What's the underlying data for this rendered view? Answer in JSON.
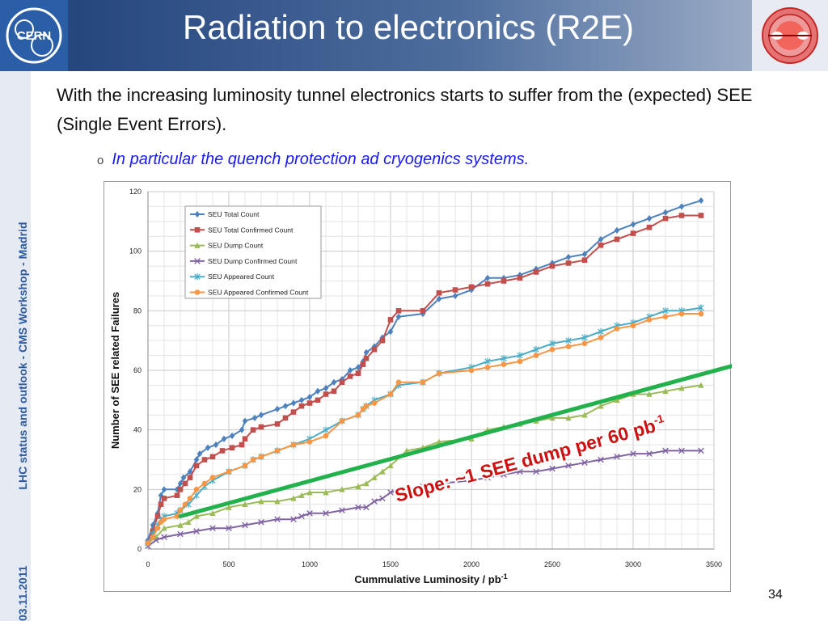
{
  "slide": {
    "title": "Radiation to electronics (R2E)",
    "body": "With the increasing luminosity tunnel electronics starts to suffer from the (expected) SEE (Single Event Errors).",
    "bullet_mark": "o",
    "bullet": "In particular the quench protection ad cryogenics systems.",
    "sidebar": "LHC status and outlook - CMS Workshop - Madrid",
    "date": "03.11.2011",
    "page_number": "34",
    "logo_left_text": "CERN"
  },
  "colors": {
    "title_bar_dark": "#1e3f78",
    "sidebar_text": "#2d5a9e",
    "bullet_text": "#1a1aee",
    "slope_text": "#cc1111",
    "slope_line": "#22b14c"
  },
  "chart_data": {
    "type": "line",
    "xlabel": "Cummulative Luminosity / pb",
    "xlabel_sup": "-1",
    "ylabel": "Number of SEE related Failures",
    "xlim": [
      0,
      3500
    ],
    "ylim": [
      0,
      120
    ],
    "xticks": [
      0,
      500,
      1000,
      1500,
      2000,
      2500,
      3000,
      3500
    ],
    "yticks": [
      0,
      20,
      40,
      60,
      80,
      100,
      120
    ],
    "grid": true,
    "legend_position": "top-left",
    "annotation": {
      "text": "Slope: ~1 SEE dump per 60 pb",
      "sup": "-1",
      "line_from": [
        200,
        11
      ],
      "line_to": [
        3850,
        65
      ]
    },
    "series": [
      {
        "name": "SEU Total Count",
        "color": "#4f81bd",
        "marker": "diamond",
        "points": [
          [
            0,
            3
          ],
          [
            30,
            8
          ],
          [
            60,
            12
          ],
          [
            80,
            18
          ],
          [
            100,
            20
          ],
          [
            180,
            20
          ],
          [
            200,
            22
          ],
          [
            220,
            24
          ],
          [
            260,
            26
          ],
          [
            300,
            30
          ],
          [
            320,
            32
          ],
          [
            370,
            34
          ],
          [
            420,
            35
          ],
          [
            470,
            37
          ],
          [
            520,
            38
          ],
          [
            580,
            40
          ],
          [
            600,
            43
          ],
          [
            660,
            44
          ],
          [
            700,
            45
          ],
          [
            800,
            47
          ],
          [
            850,
            48
          ],
          [
            900,
            49
          ],
          [
            950,
            50
          ],
          [
            1000,
            51
          ],
          [
            1050,
            53
          ],
          [
            1100,
            54
          ],
          [
            1150,
            56
          ],
          [
            1200,
            57
          ],
          [
            1250,
            60
          ],
          [
            1300,
            61
          ],
          [
            1330,
            63
          ],
          [
            1350,
            66
          ],
          [
            1400,
            68
          ],
          [
            1450,
            71
          ],
          [
            1500,
            73
          ],
          [
            1550,
            78
          ],
          [
            1700,
            79
          ],
          [
            1800,
            84
          ],
          [
            1900,
            85
          ],
          [
            2000,
            87
          ],
          [
            2100,
            91
          ],
          [
            2200,
            91
          ],
          [
            2300,
            92
          ],
          [
            2400,
            94
          ],
          [
            2500,
            96
          ],
          [
            2600,
            98
          ],
          [
            2700,
            99
          ],
          [
            2800,
            104
          ],
          [
            2900,
            107
          ],
          [
            3000,
            109
          ],
          [
            3100,
            111
          ],
          [
            3200,
            113
          ],
          [
            3300,
            115
          ],
          [
            3420,
            117
          ]
        ]
      },
      {
        "name": "SEU Total Confirmed Count",
        "color": "#c0504d",
        "marker": "square",
        "points": [
          [
            0,
            2
          ],
          [
            30,
            6
          ],
          [
            60,
            11
          ],
          [
            80,
            15
          ],
          [
            100,
            17
          ],
          [
            180,
            18
          ],
          [
            200,
            20
          ],
          [
            230,
            22
          ],
          [
            260,
            24
          ],
          [
            300,
            28
          ],
          [
            350,
            30
          ],
          [
            400,
            31
          ],
          [
            460,
            33
          ],
          [
            520,
            34
          ],
          [
            580,
            35
          ],
          [
            600,
            37
          ],
          [
            650,
            40
          ],
          [
            700,
            41
          ],
          [
            800,
            42
          ],
          [
            850,
            44
          ],
          [
            900,
            46
          ],
          [
            950,
            48
          ],
          [
            1000,
            49
          ],
          [
            1050,
            50
          ],
          [
            1100,
            52
          ],
          [
            1150,
            53
          ],
          [
            1200,
            56
          ],
          [
            1250,
            58
          ],
          [
            1300,
            59
          ],
          [
            1330,
            62
          ],
          [
            1350,
            64
          ],
          [
            1400,
            67
          ],
          [
            1450,
            70
          ],
          [
            1500,
            77
          ],
          [
            1550,
            80
          ],
          [
            1700,
            80
          ],
          [
            1800,
            86
          ],
          [
            1900,
            87
          ],
          [
            2000,
            88
          ],
          [
            2100,
            89
          ],
          [
            2200,
            90
          ],
          [
            2300,
            91
          ],
          [
            2400,
            93
          ],
          [
            2500,
            95
          ],
          [
            2600,
            96
          ],
          [
            2700,
            97
          ],
          [
            2800,
            102
          ],
          [
            2900,
            104
          ],
          [
            3000,
            106
          ],
          [
            3100,
            108
          ],
          [
            3200,
            111
          ],
          [
            3300,
            112
          ],
          [
            3420,
            112
          ]
        ]
      },
      {
        "name": "SEU Dump Count",
        "color": "#9bbb59",
        "marker": "triangle",
        "points": [
          [
            0,
            2
          ],
          [
            50,
            4
          ],
          [
            100,
            7
          ],
          [
            200,
            8
          ],
          [
            250,
            9
          ],
          [
            300,
            11
          ],
          [
            400,
            12
          ],
          [
            500,
            14
          ],
          [
            600,
            15
          ],
          [
            700,
            16
          ],
          [
            800,
            16
          ],
          [
            900,
            17
          ],
          [
            950,
            18
          ],
          [
            1000,
            19
          ],
          [
            1100,
            19
          ],
          [
            1200,
            20
          ],
          [
            1300,
            21
          ],
          [
            1350,
            22
          ],
          [
            1400,
            24
          ],
          [
            1450,
            26
          ],
          [
            1500,
            28
          ],
          [
            1600,
            33
          ],
          [
            1700,
            34
          ],
          [
            1800,
            36
          ],
          [
            2000,
            37
          ],
          [
            2100,
            40
          ],
          [
            2200,
            41
          ],
          [
            2300,
            42
          ],
          [
            2400,
            43
          ],
          [
            2500,
            44
          ],
          [
            2600,
            44
          ],
          [
            2700,
            45
          ],
          [
            2800,
            48
          ],
          [
            2900,
            50
          ],
          [
            3000,
            52
          ],
          [
            3100,
            52
          ],
          [
            3200,
            53
          ],
          [
            3300,
            54
          ],
          [
            3420,
            55
          ]
        ]
      },
      {
        "name": "SEU Dump Confirmed Count",
        "color": "#8064a2",
        "marker": "x",
        "points": [
          [
            0,
            1
          ],
          [
            50,
            3
          ],
          [
            100,
            4
          ],
          [
            200,
            5
          ],
          [
            300,
            6
          ],
          [
            400,
            7
          ],
          [
            500,
            7
          ],
          [
            600,
            8
          ],
          [
            700,
            9
          ],
          [
            800,
            10
          ],
          [
            900,
            10
          ],
          [
            950,
            11
          ],
          [
            1000,
            12
          ],
          [
            1100,
            12
          ],
          [
            1200,
            13
          ],
          [
            1300,
            14
          ],
          [
            1350,
            14
          ],
          [
            1400,
            16
          ],
          [
            1450,
            17
          ],
          [
            1500,
            19
          ],
          [
            1600,
            20
          ],
          [
            1700,
            21
          ],
          [
            1800,
            22
          ],
          [
            2000,
            23
          ],
          [
            2100,
            24
          ],
          [
            2200,
            25
          ],
          [
            2300,
            26
          ],
          [
            2400,
            26
          ],
          [
            2500,
            27
          ],
          [
            2600,
            28
          ],
          [
            2700,
            29
          ],
          [
            2800,
            30
          ],
          [
            2900,
            31
          ],
          [
            3000,
            32
          ],
          [
            3100,
            32
          ],
          [
            3200,
            33
          ],
          [
            3300,
            33
          ],
          [
            3420,
            33
          ]
        ]
      },
      {
        "name": "SEU Appeared Count",
        "color": "#4bacc6",
        "marker": "star",
        "points": [
          [
            0,
            2
          ],
          [
            30,
            5
          ],
          [
            60,
            8
          ],
          [
            80,
            10
          ],
          [
            100,
            11
          ],
          [
            180,
            12
          ],
          [
            200,
            13
          ],
          [
            250,
            15
          ],
          [
            300,
            18
          ],
          [
            350,
            21
          ],
          [
            400,
            23
          ],
          [
            500,
            26
          ],
          [
            600,
            28
          ],
          [
            650,
            30
          ],
          [
            700,
            31
          ],
          [
            800,
            33
          ],
          [
            900,
            35
          ],
          [
            1000,
            37
          ],
          [
            1100,
            40
          ],
          [
            1200,
            43
          ],
          [
            1300,
            45
          ],
          [
            1330,
            47
          ],
          [
            1350,
            48
          ],
          [
            1400,
            50
          ],
          [
            1500,
            52
          ],
          [
            1550,
            55
          ],
          [
            1700,
            56
          ],
          [
            1800,
            59
          ],
          [
            2000,
            61
          ],
          [
            2100,
            63
          ],
          [
            2200,
            64
          ],
          [
            2300,
            65
          ],
          [
            2400,
            67
          ],
          [
            2500,
            69
          ],
          [
            2600,
            70
          ],
          [
            2700,
            71
          ],
          [
            2800,
            73
          ],
          [
            2900,
            75
          ],
          [
            3000,
            76
          ],
          [
            3100,
            78
          ],
          [
            3200,
            80
          ],
          [
            3300,
            80
          ],
          [
            3420,
            81
          ]
        ]
      },
      {
        "name": "SEU Appeared Confirmed Count",
        "color": "#f79646",
        "marker": "circle",
        "points": [
          [
            0,
            2
          ],
          [
            30,
            4
          ],
          [
            60,
            7
          ],
          [
            80,
            9
          ],
          [
            100,
            10
          ],
          [
            180,
            11
          ],
          [
            200,
            13
          ],
          [
            230,
            15
          ],
          [
            260,
            17
          ],
          [
            300,
            20
          ],
          [
            350,
            22
          ],
          [
            400,
            24
          ],
          [
            500,
            26
          ],
          [
            600,
            28
          ],
          [
            650,
            30
          ],
          [
            700,
            31
          ],
          [
            800,
            33
          ],
          [
            900,
            35
          ],
          [
            1000,
            36
          ],
          [
            1100,
            38
          ],
          [
            1200,
            43
          ],
          [
            1300,
            45
          ],
          [
            1330,
            47
          ],
          [
            1350,
            48
          ],
          [
            1400,
            49
          ],
          [
            1500,
            52
          ],
          [
            1550,
            56
          ],
          [
            1700,
            56
          ],
          [
            1800,
            59
          ],
          [
            2000,
            60
          ],
          [
            2100,
            61
          ],
          [
            2200,
            62
          ],
          [
            2300,
            63
          ],
          [
            2400,
            65
          ],
          [
            2500,
            67
          ],
          [
            2600,
            68
          ],
          [
            2700,
            69
          ],
          [
            2800,
            71
          ],
          [
            2900,
            74
          ],
          [
            3000,
            75
          ],
          [
            3100,
            77
          ],
          [
            3200,
            78
          ],
          [
            3300,
            79
          ],
          [
            3420,
            79
          ]
        ]
      }
    ]
  }
}
